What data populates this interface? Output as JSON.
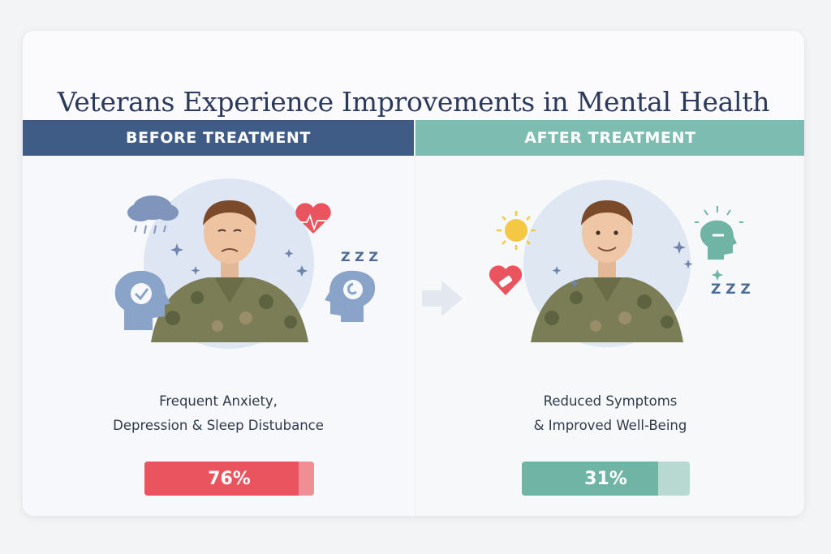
{
  "title": "Veterans Experience Improvements in Mental Health",
  "before": {
    "heading": "BEFORE TREATMENT",
    "desc_line1": "Frequent Anxiety,",
    "desc_line2": "Depression & Sleep Distubance",
    "percent_label": "76%",
    "value": 0.76,
    "zzz": "Z Z Z"
  },
  "after": {
    "heading": "AFTER TREATMENT",
    "desc_line1": "Reduced Symptoms",
    "desc_line2": "& Improved Well-Being",
    "percent_label": "31%",
    "value": 0.31,
    "zzz": "Z Z Z"
  },
  "colors": {
    "before_band": "#3f5c87",
    "after_band": "#7dbcb0",
    "before_bar": "#e9545f",
    "before_bar_track": "#f08e96",
    "after_bar": "#6fb4a4",
    "after_bar_track": "#b7d9d1",
    "title": "#2b3a5c"
  },
  "icons": {
    "before": [
      "rain-cloud-icon",
      "heart-pulse-icon",
      "sleep-zzz-icon",
      "head-check-icon",
      "head-spiral-icon",
      "sparkle-icon"
    ],
    "after": [
      "sun-icon",
      "heart-bandage-icon",
      "calm-head-icon",
      "sleep-zzz-icon",
      "sparkle-icon"
    ]
  }
}
